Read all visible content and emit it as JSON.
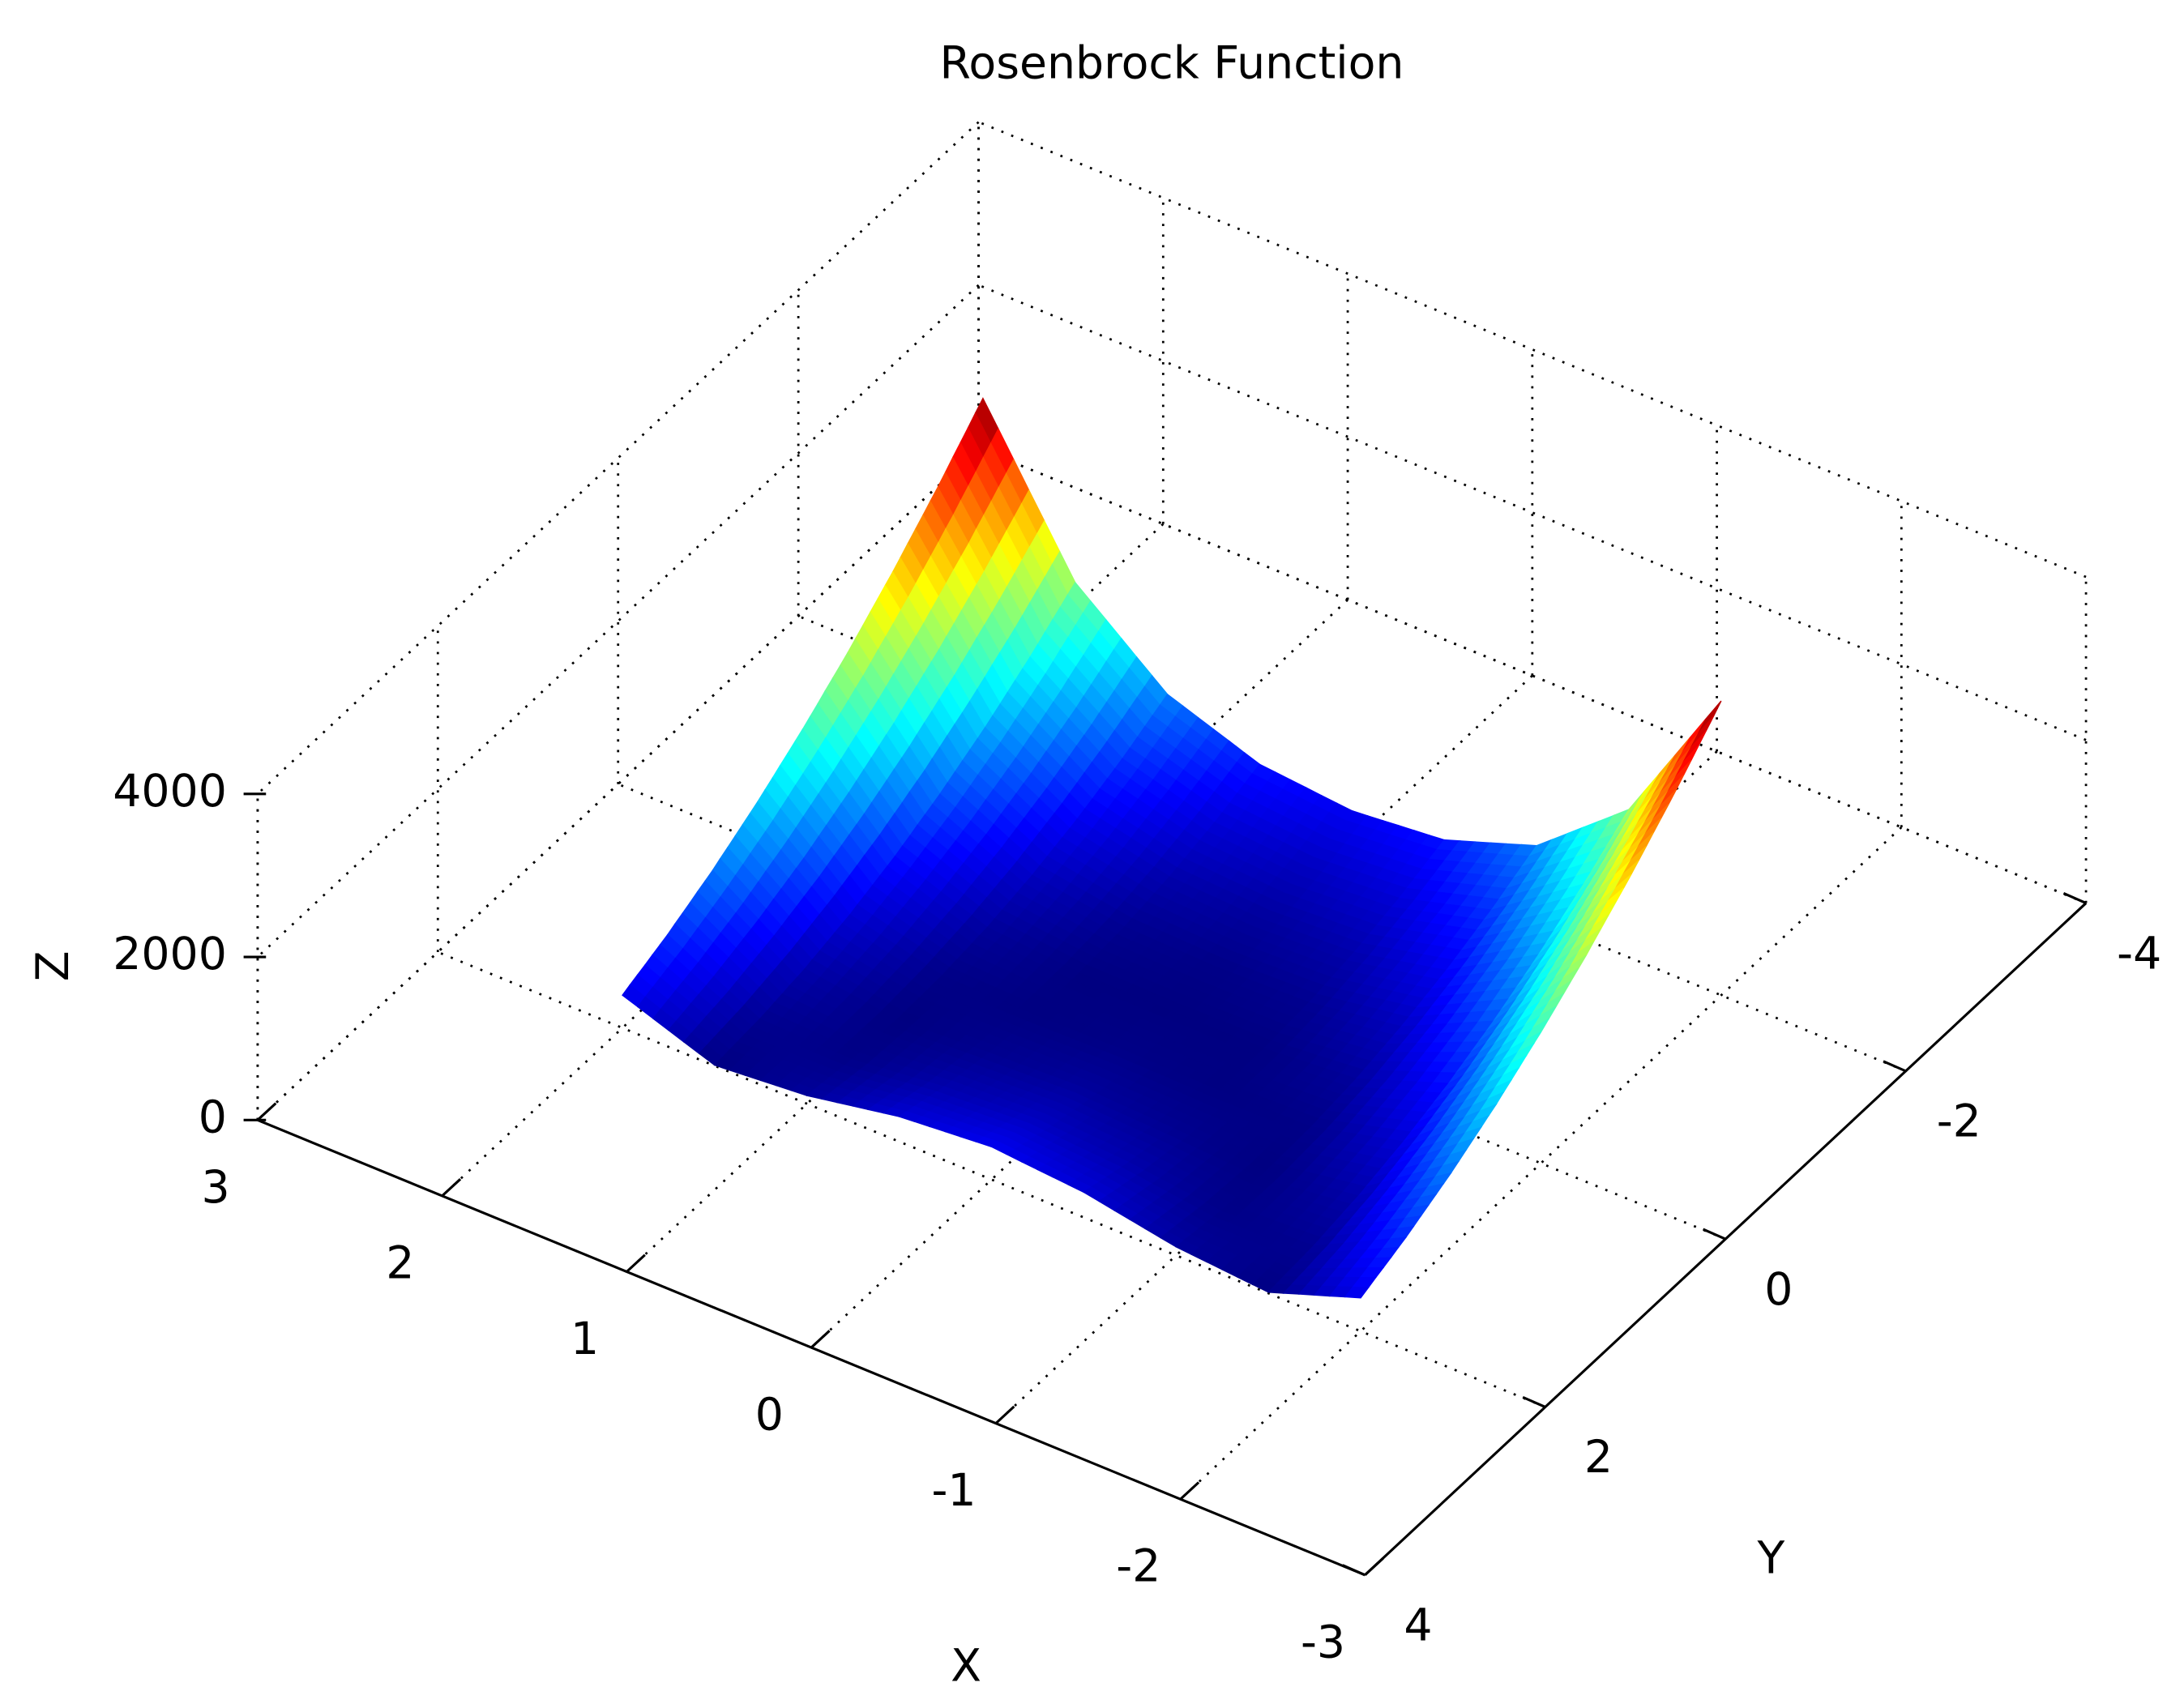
{
  "chart_data": {
    "type": "surface",
    "title": "Rosenbrock Function",
    "x_label": "X",
    "y_label": "Y",
    "z_label": "Z",
    "x": [
      -2,
      -1.5,
      -1,
      -0.5,
      0,
      0.5,
      1,
      1.5,
      2
    ],
    "y": [
      -2,
      -1.5,
      -1,
      -0.5,
      0,
      0.5,
      1,
      1.5,
      2
    ],
    "z": [
      [
        3609,
        1813,
        904,
        509,
        401,
        507,
        900,
        1807,
        3601
      ],
      [
        3034,
        1413,
        629,
        309,
        226,
        307,
        625,
        1407,
        3026
      ],
      [
        2509,
        1063,
        404,
        159,
        101,
        157,
        400,
        1057,
        2501
      ],
      [
        2034,
        763,
        229,
        59,
        26,
        57,
        225,
        757,
        2026
      ],
      [
        1609,
        513,
        104,
        9,
        1,
        7,
        100,
        507,
        1601
      ],
      [
        1234,
        313,
        29,
        9,
        26,
        7,
        25,
        307,
        1226
      ],
      [
        909,
        163,
        4,
        59,
        101,
        57,
        0,
        157,
        901
      ],
      [
        634,
        63,
        29,
        159,
        226,
        157,
        25,
        57,
        626
      ],
      [
        409,
        13,
        104,
        309,
        401,
        307,
        100,
        7,
        401
      ]
    ],
    "colormap": "jet",
    "xlim": [
      -3,
      3
    ],
    "ylim": [
      -4,
      4
    ],
    "zlim": [
      0,
      4000
    ],
    "xticks": [
      -3,
      -2,
      -1,
      0,
      1,
      2,
      3
    ],
    "yticks": [
      -4,
      -2,
      0,
      2,
      4
    ],
    "zticks": [
      0,
      2000,
      4000
    ],
    "grid": true
  }
}
